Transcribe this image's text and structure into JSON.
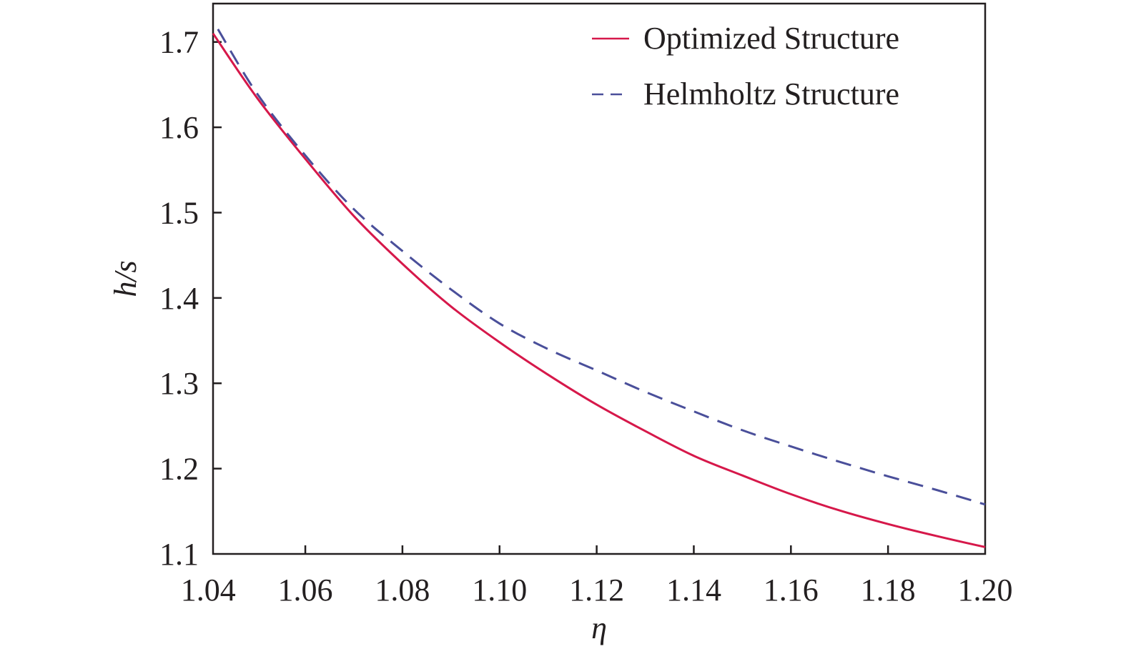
{
  "chart_data": {
    "type": "line",
    "xlabel": "η",
    "ylabel": "h/s",
    "xlim": [
      1.041,
      1.2
    ],
    "ylim": [
      1.1,
      1.745
    ],
    "x_ticks": [
      1.04,
      1.06,
      1.08,
      1.1,
      1.12,
      1.14,
      1.16,
      1.18,
      1.2
    ],
    "x_tick_labels": [
      "1.04",
      "1.06",
      "1.08",
      "1.10",
      "1.12",
      "1.14",
      "1.16",
      "1.18",
      "1.20"
    ],
    "y_ticks": [
      1.1,
      1.2,
      1.3,
      1.4,
      1.5,
      1.6,
      1.7
    ],
    "y_tick_labels": [
      "1.1",
      "1.2",
      "1.3",
      "1.4",
      "1.5",
      "1.6",
      "1.7"
    ],
    "grid": false,
    "legend_position": "top-right",
    "series": [
      {
        "name": "Optimized Structure",
        "color": "#d6184a",
        "style": "solid",
        "x": [
          1.041,
          1.05,
          1.06,
          1.07,
          1.08,
          1.09,
          1.1,
          1.11,
          1.12,
          1.13,
          1.14,
          1.15,
          1.16,
          1.17,
          1.18,
          1.19,
          1.2
        ],
        "y": [
          1.71,
          1.635,
          1.563,
          1.496,
          1.44,
          1.39,
          1.348,
          1.31,
          1.275,
          1.244,
          1.215,
          1.192,
          1.17,
          1.151,
          1.135,
          1.121,
          1.108
        ]
      },
      {
        "name": "Helmholtz Structure",
        "color": "#4a4f9a",
        "style": "dashed",
        "x": [
          1.042,
          1.05,
          1.06,
          1.07,
          1.08,
          1.09,
          1.1,
          1.11,
          1.12,
          1.13,
          1.14,
          1.15,
          1.16,
          1.17,
          1.18,
          1.19,
          1.2
        ],
        "y": [
          1.715,
          1.64,
          1.567,
          1.504,
          1.455,
          1.41,
          1.37,
          1.34,
          1.315,
          1.29,
          1.267,
          1.245,
          1.226,
          1.208,
          1.191,
          1.175,
          1.158
        ]
      }
    ]
  }
}
